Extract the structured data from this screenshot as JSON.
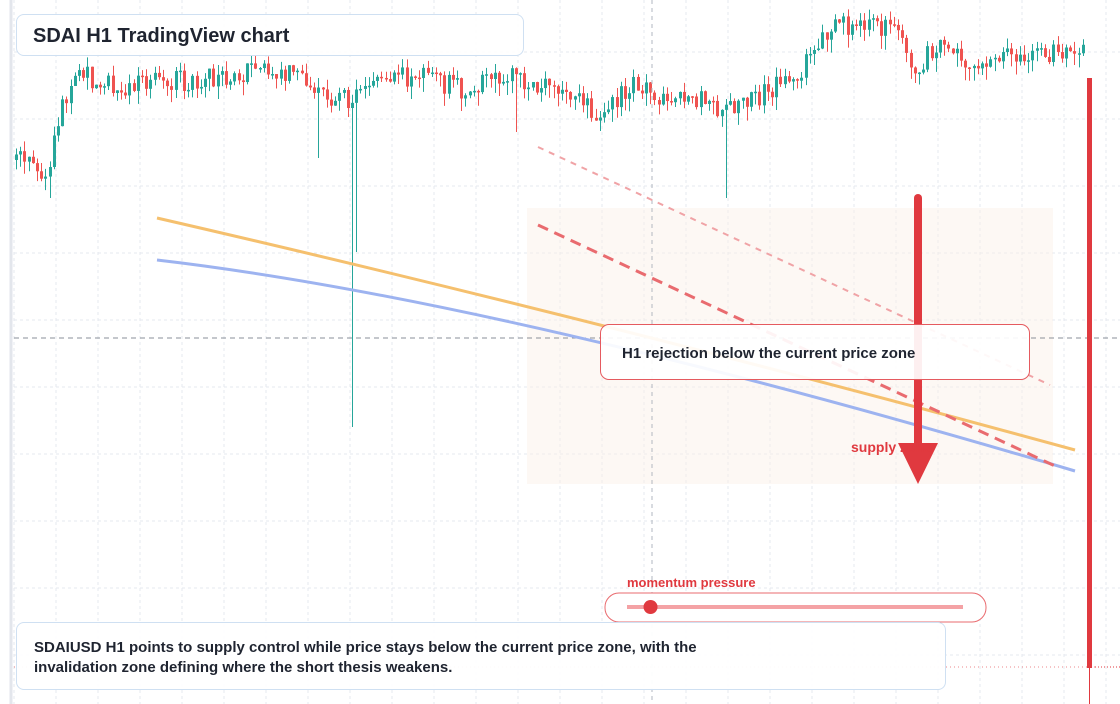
{
  "title": "SDAI H1 TradingView chart",
  "annotation_text": "H1 rejection below the current price zone",
  "supply_label": "supply zone",
  "momentum_label": "momentum pressure",
  "summary": "SDAIUSD H1 points to supply control while price stays below the current price zone, with the invalidation zone defining where the short thesis weakens.",
  "colors": {
    "up": "#26a69a",
    "down": "#ef5350",
    "accent": "#e0393f",
    "orange_line": "#f5c06e",
    "blue_line": "#9db3f0",
    "grid": "#e6e9ef"
  },
  "chart_data": {
    "type": "candlestick",
    "timeframe": "H1",
    "symbol": "SDAIUSD",
    "grid": true,
    "crosshair": true,
    "momentum_level": 0.07,
    "candles_seed": 20240701,
    "direction_hint": "bearish"
  }
}
